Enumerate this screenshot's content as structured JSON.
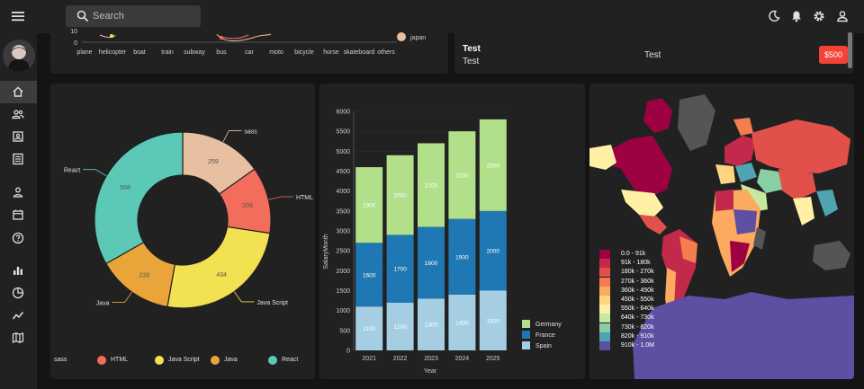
{
  "search": {
    "placeholder": "Search"
  },
  "top_card": {
    "vehicles": [
      "plane",
      "helicopter",
      "boat",
      "train",
      "subway",
      "bus",
      "car",
      "moto",
      "bicycle",
      "horse",
      "skateboard",
      "others"
    ],
    "y_ticks": [
      "10",
      "0"
    ],
    "legend_label": "japan"
  },
  "test_card": {
    "title": "Test",
    "subtitle": "Test",
    "center": "Test",
    "price": "$500"
  },
  "donut": {
    "chart_data": {
      "type": "pie",
      "categories": [
        "sass",
        "HTML",
        "Java Script",
        "Java",
        "React"
      ],
      "values": [
        259,
        209,
        434,
        239,
        568
      ],
      "colors": [
        "#e8bfa1",
        "#f26d5b",
        "#f2e150",
        "#e9a53a",
        "#5cc9b6"
      ]
    }
  },
  "stacked": {
    "chart_data": {
      "type": "bar",
      "categories": [
        "2021",
        "2022",
        "2023",
        "2024",
        "2025"
      ],
      "series": [
        {
          "name": "Spain",
          "values": [
            1100,
            1200,
            1300,
            1400,
            1500
          ],
          "color": "#a6cee3"
        },
        {
          "name": "France",
          "values": [
            1600,
            1700,
            1800,
            1900,
            2000
          ],
          "color": "#1f78b4"
        },
        {
          "name": "Germany",
          "values": [
            1900,
            2000,
            2100,
            2200,
            2300
          ],
          "color": "#b2df8a"
        }
      ],
      "ylim": [
        0,
        6000
      ],
      "y_ticks": [
        "0",
        "500",
        "1000",
        "1500",
        "2000",
        "2500",
        "3000",
        "3500",
        "4000",
        "4500",
        "5000",
        "5500",
        "6000"
      ],
      "xlabel": "Year",
      "ylabel": "SalaryMonth"
    }
  },
  "map": {
    "legend": [
      {
        "label": "0.0 - 91k",
        "color": "#9e0142"
      },
      {
        "label": "91k - 180k",
        "color": "#c2294a"
      },
      {
        "label": "180k - 270k",
        "color": "#e1504a"
      },
      {
        "label": "270k - 360k",
        "color": "#f47d4e"
      },
      {
        "label": "360k - 450k",
        "color": "#fcaa5f"
      },
      {
        "label": "450k - 550k",
        "color": "#fed481"
      },
      {
        "label": "550k - 640k",
        "color": "#fff0a6"
      },
      {
        "label": "640k - 730k",
        "color": "#c7e89e"
      },
      {
        "label": "730k - 820k",
        "color": "#88cfa4"
      },
      {
        "label": "820k - 910k",
        "color": "#4ea5b1"
      },
      {
        "label": "910k - 1.0M",
        "color": "#5e4fa2"
      }
    ]
  }
}
